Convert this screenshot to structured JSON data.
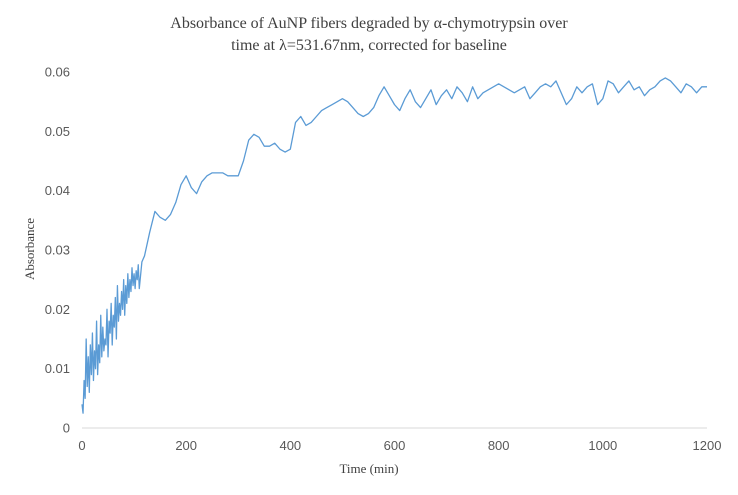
{
  "chart_data": {
    "type": "line",
    "title_lines": [
      "Absorbance of AuNP fibers degraded by α-chymotrypsin  over",
      "time  at λ=531.67nm,  corrected for baseline"
    ],
    "xlabel": "Time  (min)",
    "ylabel": "Absorbance",
    "xlim": [
      0,
      1200
    ],
    "ylim": [
      0,
      0.06
    ],
    "x_ticks": [
      0,
      200,
      400,
      600,
      800,
      1000,
      1200
    ],
    "y_ticks": [
      "0",
      "0.01",
      "0.02",
      "0.03",
      "0.04",
      "0.05",
      "0.06"
    ],
    "grid": false,
    "series_color": "#5B9BD5",
    "axis_color": "#d9d9d9",
    "series": [
      {
        "x": [
          0,
          2,
          4,
          6,
          8,
          10,
          12,
          14,
          16,
          18,
          20,
          22,
          24,
          26,
          28,
          30,
          32,
          34,
          36,
          38,
          40,
          42,
          44,
          46,
          48,
          50,
          52,
          54,
          56,
          58,
          60,
          62,
          64,
          66,
          68,
          70,
          72,
          74,
          76,
          78,
          80,
          82,
          84,
          86,
          88,
          90,
          92,
          94,
          96,
          98,
          100,
          102,
          104,
          106,
          108,
          110,
          115,
          120,
          130,
          140,
          150,
          160,
          170,
          180,
          190,
          200,
          210,
          220,
          230,
          240,
          250,
          260,
          270,
          280,
          290,
          300,
          310,
          320,
          330,
          340,
          350,
          360,
          370,
          380,
          390,
          400,
          410,
          420,
          430,
          440,
          450,
          460,
          470,
          480,
          490,
          500,
          510,
          520,
          530,
          540,
          550,
          560,
          570,
          580,
          590,
          600,
          610,
          620,
          630,
          640,
          650,
          660,
          670,
          680,
          690,
          700,
          710,
          720,
          730,
          740,
          750,
          760,
          770,
          780,
          790,
          800,
          810,
          820,
          830,
          840,
          850,
          860,
          870,
          880,
          890,
          900,
          910,
          920,
          930,
          940,
          950,
          960,
          970,
          980,
          990,
          1000,
          1010,
          1020,
          1030,
          1040,
          1050,
          1060,
          1070,
          1080,
          1090,
          1100,
          1110,
          1120,
          1130,
          1140,
          1150,
          1160,
          1170,
          1180,
          1190,
          1200
        ],
        "y": [
          0.004,
          0.0025,
          0.008,
          0.005,
          0.015,
          0.007,
          0.012,
          0.006,
          0.014,
          0.009,
          0.016,
          0.008,
          0.013,
          0.01,
          0.018,
          0.009,
          0.014,
          0.011,
          0.019,
          0.012,
          0.017,
          0.013,
          0.015,
          0.014,
          0.02,
          0.012,
          0.018,
          0.016,
          0.021,
          0.014,
          0.019,
          0.017,
          0.022,
          0.015,
          0.024,
          0.018,
          0.021,
          0.019,
          0.023,
          0.02,
          0.025,
          0.019,
          0.024,
          0.021,
          0.026,
          0.022,
          0.025,
          0.023,
          0.027,
          0.024,
          0.026,
          0.0235,
          0.0265,
          0.025,
          0.0275,
          0.0235,
          0.028,
          0.029,
          0.033,
          0.0365,
          0.0355,
          0.035,
          0.036,
          0.038,
          0.041,
          0.0425,
          0.0405,
          0.0395,
          0.0415,
          0.0425,
          0.043,
          0.043,
          0.043,
          0.0425,
          0.0425,
          0.0425,
          0.045,
          0.0485,
          0.0495,
          0.049,
          0.0475,
          0.0475,
          0.048,
          0.047,
          0.0465,
          0.047,
          0.0515,
          0.0525,
          0.051,
          0.0515,
          0.0525,
          0.0535,
          0.054,
          0.0545,
          0.055,
          0.0555,
          0.055,
          0.054,
          0.053,
          0.0525,
          0.053,
          0.054,
          0.056,
          0.0575,
          0.056,
          0.0545,
          0.0535,
          0.0555,
          0.057,
          0.055,
          0.054,
          0.0555,
          0.057,
          0.0545,
          0.056,
          0.057,
          0.0555,
          0.0575,
          0.0565,
          0.055,
          0.0575,
          0.0555,
          0.0565,
          0.057,
          0.0575,
          0.058,
          0.0575,
          0.057,
          0.0565,
          0.057,
          0.0575,
          0.0555,
          0.0565,
          0.0575,
          0.058,
          0.0575,
          0.0585,
          0.0565,
          0.0545,
          0.0555,
          0.0575,
          0.0565,
          0.0575,
          0.058,
          0.0545,
          0.0555,
          0.0585,
          0.058,
          0.0565,
          0.0575,
          0.0585,
          0.057,
          0.0575,
          0.056,
          0.057,
          0.0575,
          0.0585,
          0.059,
          0.0585,
          0.0575,
          0.0565,
          0.058,
          0.0575,
          0.0565,
          0.0575,
          0.0575
        ]
      }
    ]
  }
}
